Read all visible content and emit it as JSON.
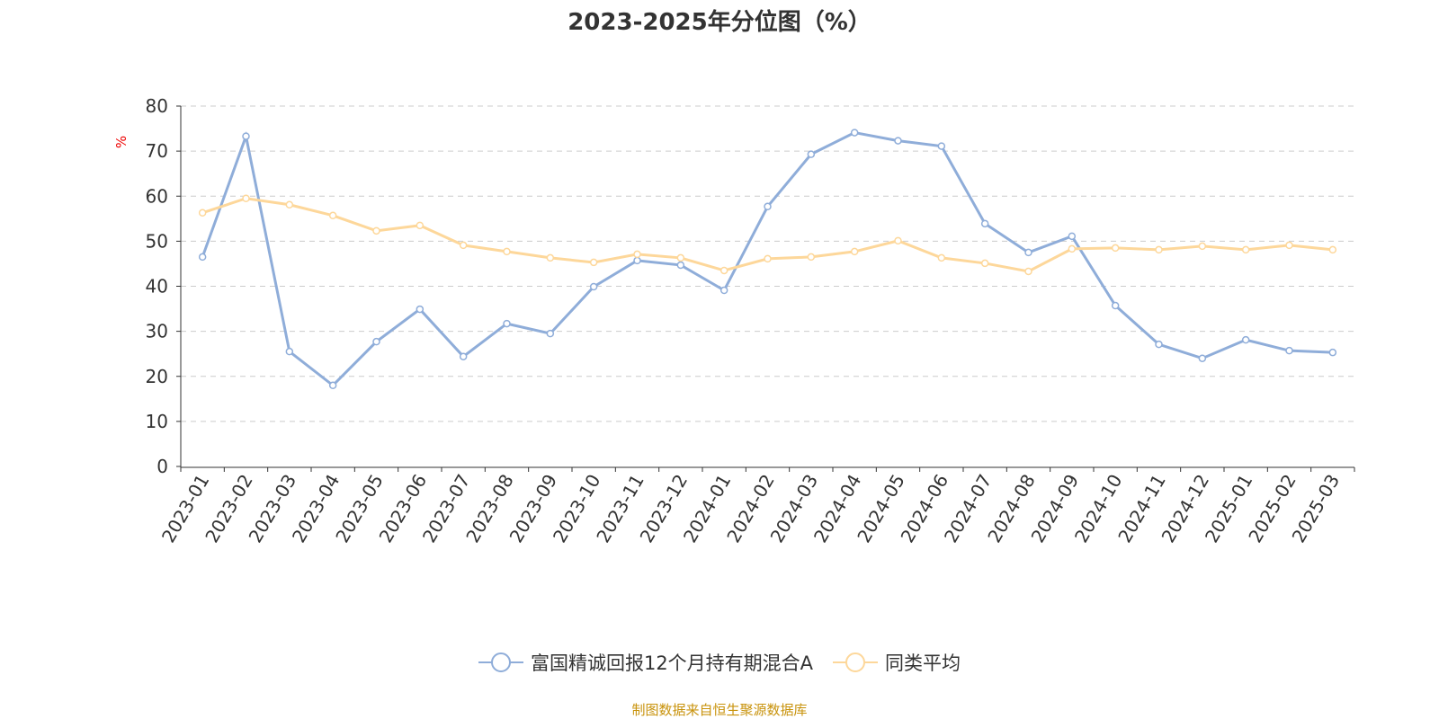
{
  "chart_data": {
    "type": "line",
    "title": "2023-2025年分位图（%）",
    "ylabel": "%",
    "xlabel": "",
    "ylim": [
      0,
      80
    ],
    "yticks": [
      0,
      10,
      20,
      30,
      40,
      50,
      60,
      70,
      80
    ],
    "grid": true,
    "legend_position": "bottom",
    "categories": [
      "2023-01",
      "2023-02",
      "2023-03",
      "2023-04",
      "2023-05",
      "2023-06",
      "2023-07",
      "2023-08",
      "2023-09",
      "2023-10",
      "2023-11",
      "2023-12",
      "2024-01",
      "2024-02",
      "2024-03",
      "2024-04",
      "2024-05",
      "2024-06",
      "2024-07",
      "2024-08",
      "2024-09",
      "2024-10",
      "2024-11",
      "2024-12",
      "2025-01",
      "2025-02",
      "2025-03"
    ],
    "series": [
      {
        "name": "富国精诚回报12个月持有期混合A",
        "color": "#8fadd9",
        "values": [
          46.5,
          73.3,
          25.5,
          18.0,
          27.7,
          34.9,
          24.4,
          31.7,
          29.5,
          39.9,
          45.7,
          44.7,
          39.1,
          57.7,
          69.3,
          74.1,
          72.3,
          71.1,
          53.9,
          47.5,
          51.1,
          35.7,
          27.1,
          24.0,
          28.1,
          25.7,
          25.3
        ]
      },
      {
        "name": "同类平均",
        "color": "#fdd79a",
        "values": [
          56.3,
          59.5,
          58.1,
          55.7,
          52.3,
          53.5,
          49.1,
          47.7,
          46.3,
          45.3,
          47.1,
          46.3,
          43.5,
          46.1,
          46.5,
          47.7,
          50.1,
          46.3,
          45.1,
          43.3,
          48.3,
          48.5,
          48.1,
          48.9,
          48.1,
          49.1,
          48.1
        ]
      }
    ]
  },
  "source": "制图数据来自恒生聚源数据库"
}
